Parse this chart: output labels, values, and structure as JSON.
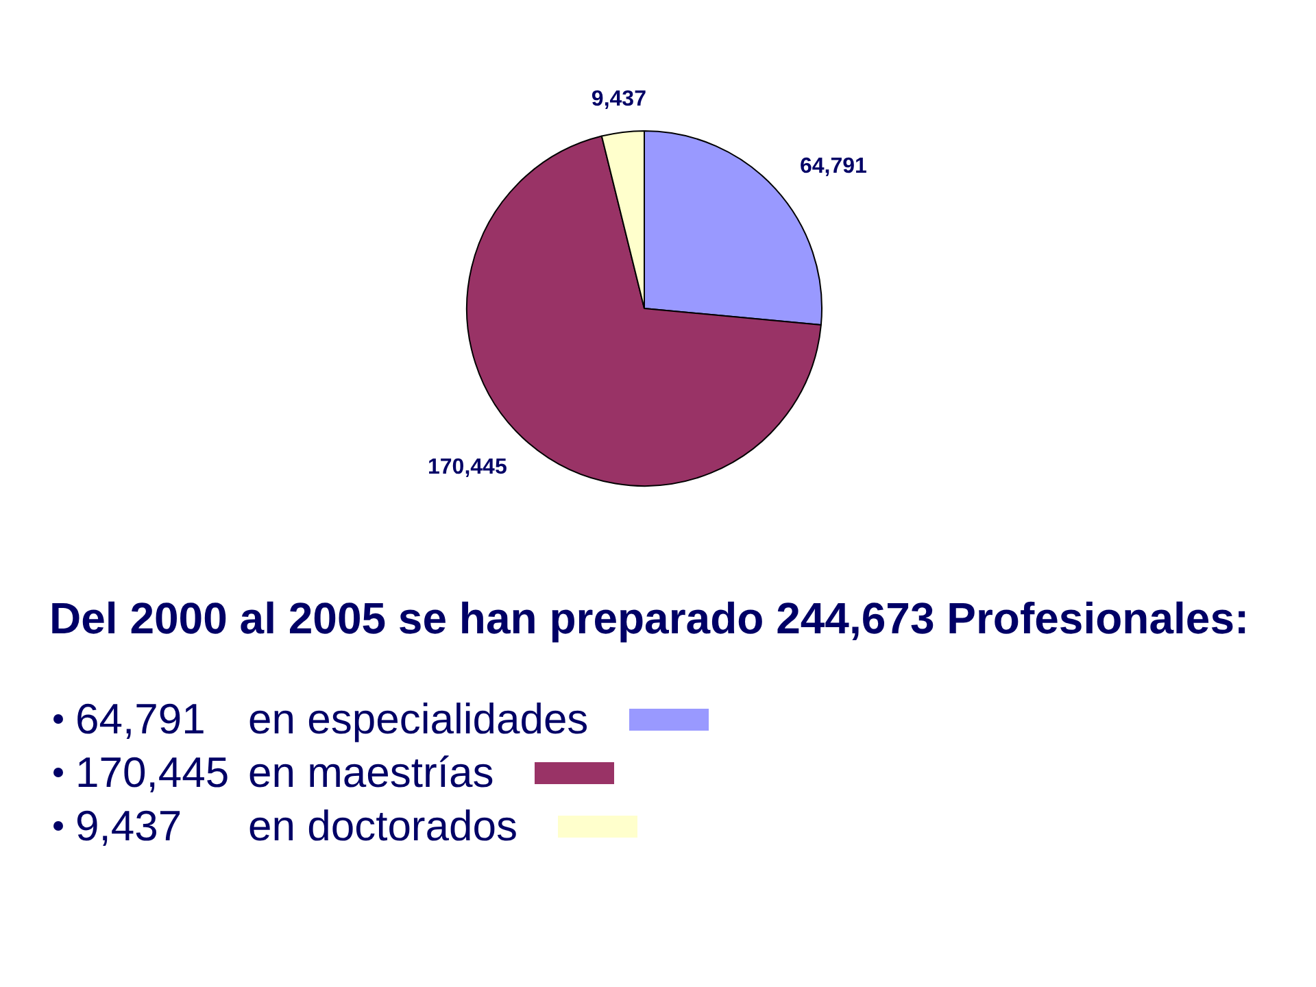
{
  "chart_data": {
    "type": "pie",
    "title": "Del 2000 al 2005 se han preparado 244,673 Profesionales:",
    "categories": [
      "en especialidades",
      "en maestrías",
      "en doctorados"
    ],
    "values": [
      64791,
      170445,
      9437
    ],
    "value_labels": [
      "64,791",
      "170,445",
      "9,437"
    ],
    "colors": [
      "#9999ff",
      "#993366",
      "#ffffcc"
    ],
    "legend": "bottom"
  }
}
